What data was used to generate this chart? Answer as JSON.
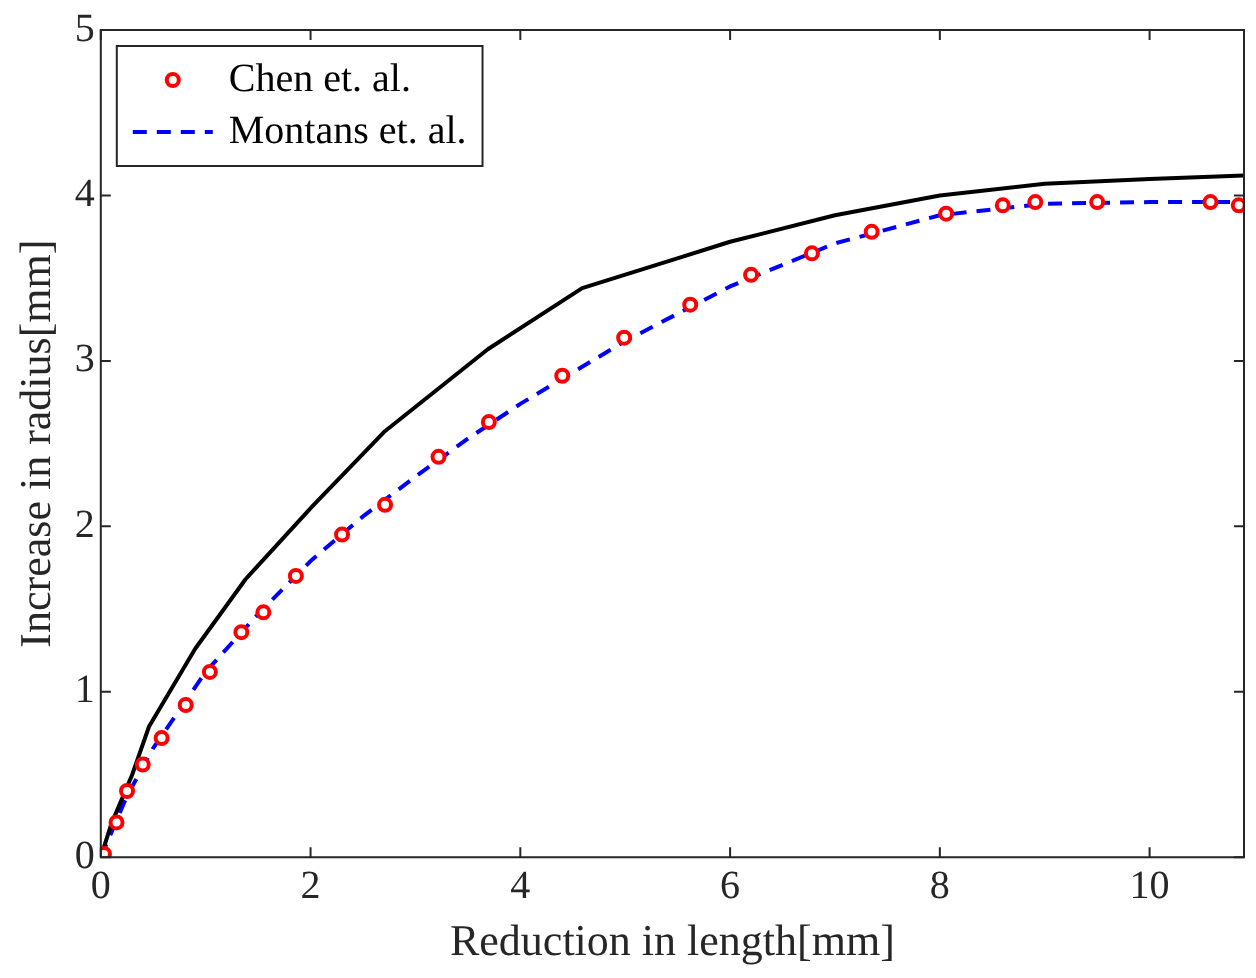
{
  "chart_data": {
    "type": "line",
    "xlabel": "Reduction in length[mm]",
    "ylabel": "Increase in radius[mm]",
    "xlim": [
      0,
      10.9
    ],
    "ylim": [
      0,
      5
    ],
    "xticks": [
      0,
      2,
      4,
      6,
      8,
      10
    ],
    "yticks": [
      0,
      1,
      2,
      3,
      4,
      5
    ],
    "grid": false,
    "legend": "top left",
    "series": [
      {
        "type": "line",
        "color": "#000000",
        "line_style": "solid",
        "marker": "none",
        "x": [
          0,
          0.1,
          0.3,
          0.46,
          0.9,
          1.38,
          2.03,
          2.7,
          3.69,
          4.59,
          5.55,
          6,
          7,
          8,
          9,
          10,
          10.9
        ],
        "values": [
          0,
          0.2,
          0.5,
          0.79,
          1.26,
          1.68,
          2.13,
          2.57,
          3.07,
          3.44,
          3.63,
          3.72,
          3.88,
          4.0,
          4.07,
          4.1,
          4.12
        ]
      },
      {
        "type": "scatter",
        "name": "Chen et. al.",
        "color": "#ff0000",
        "marker": "circle",
        "x": [
          0.03,
          0.15,
          0.25,
          0.4,
          0.58,
          0.81,
          1.04,
          1.34,
          1.55,
          1.86,
          2.3,
          2.71,
          3.22,
          3.7,
          4.4,
          4.99,
          5.62,
          6.2,
          6.78,
          7.35,
          8.06,
          8.6,
          8.91,
          9.5,
          10.58,
          10.85
        ],
        "values": [
          0.02,
          0.21,
          0.4,
          0.56,
          0.72,
          0.92,
          1.12,
          1.36,
          1.48,
          1.7,
          1.95,
          2.13,
          2.42,
          2.63,
          2.91,
          3.14,
          3.34,
          3.52,
          3.65,
          3.78,
          3.89,
          3.94,
          3.96,
          3.96,
          3.96,
          3.94
        ]
      },
      {
        "type": "line",
        "name": "Montans et. al.",
        "color": "#0000ff",
        "line_style": "dashed",
        "marker": "none",
        "x": [
          0,
          0.25,
          0.5,
          1,
          1.5,
          2,
          2.5,
          3,
          3.5,
          4,
          5,
          6,
          7,
          8,
          9,
          10,
          10.9
        ],
        "values": [
          0,
          0.37,
          0.66,
          1.12,
          1.47,
          1.79,
          2.06,
          2.3,
          2.53,
          2.74,
          3.12,
          3.45,
          3.71,
          3.88,
          3.95,
          3.96,
          3.96
        ]
      }
    ]
  }
}
